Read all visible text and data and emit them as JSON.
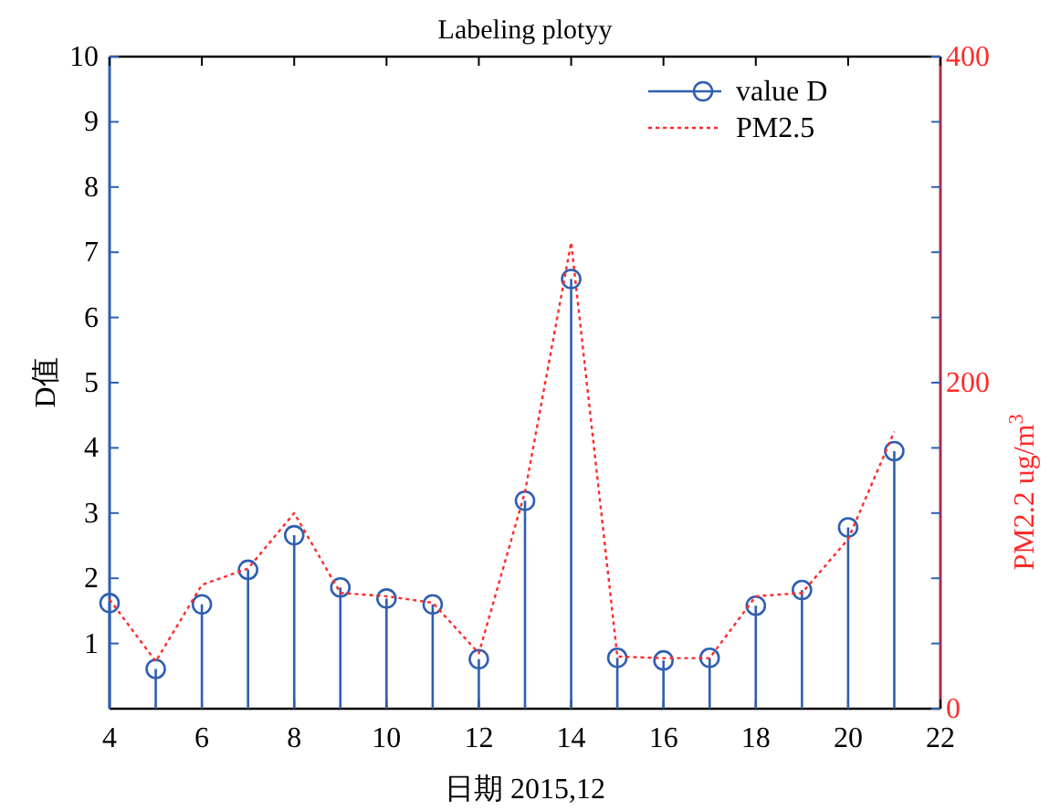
{
  "chart_data": {
    "type": "line",
    "title": "Labeling plotyy",
    "xlabel": "日期 2015,12",
    "ylabel": "D值",
    "y2label": "PM2.2 ug/m$^{3}$",
    "x": [
      4,
      5,
      6,
      7,
      8,
      9,
      10,
      11,
      12,
      13,
      14,
      15,
      16,
      17,
      18,
      19,
      20,
      21
    ],
    "xlim": [
      4,
      22
    ],
    "xticks": [
      4,
      6,
      8,
      10,
      12,
      14,
      16,
      18,
      20,
      22
    ],
    "ylim": [
      0,
      10
    ],
    "yticks": [
      1,
      2,
      3,
      4,
      5,
      6,
      7,
      8,
      9,
      10
    ],
    "y2lim": [
      0,
      400
    ],
    "y2ticks": [
      0,
      {
        "value": 40,
        "label": null
      },
      {
        "value": 80,
        "label": null
      },
      {
        "value": 120,
        "label": null
      },
      {
        "value": 160,
        "label": null
      },
      200,
      {
        "value": 240,
        "label": null
      },
      {
        "value": 280,
        "label": null
      },
      {
        "value": 320,
        "label": null
      },
      {
        "value": 360,
        "label": null
      },
      400
    ],
    "legend": "top right",
    "series": [
      {
        "name": "value D",
        "type": "lollipop",
        "marker": "circle",
        "color": "#2f5fb0",
        "values": [
          1.62,
          0.61,
          1.6,
          2.13,
          2.66,
          1.86,
          1.69,
          1.6,
          0.76,
          3.19,
          6.59,
          0.78,
          0.74,
          0.78,
          1.58,
          1.82,
          2.78,
          3.95
        ]
      },
      {
        "name": "PM2.5",
        "axis": "y2",
        "line_style": "dotted",
        "color": "#ff2a2a",
        "values": [
          67,
          29,
          76,
          86,
          120,
          71,
          69,
          65,
          34,
          133,
          286,
          32,
          31,
          31,
          69,
          71,
          104,
          170
        ]
      }
    ]
  }
}
